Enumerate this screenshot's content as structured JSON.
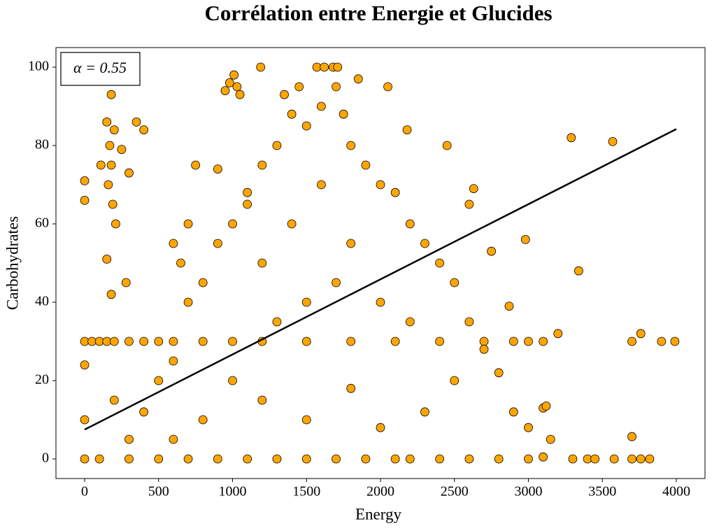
{
  "chart_data": {
    "type": "scatter",
    "title": "Corrélation entre Energie et Glucides",
    "x_label": "Energy",
    "y_label": "Carbohydrates",
    "annotation": "α = 0.55",
    "color": "#ffa500",
    "edge_color": "#000000",
    "xlim": [
      -194,
      4194
    ],
    "ylim": [
      -5,
      105
    ],
    "xticks": [
      0,
      500,
      1000,
      1500,
      2000,
      2500,
      3000,
      3500,
      4000
    ],
    "yticks": [
      0,
      20,
      40,
      60,
      80,
      100
    ],
    "grid": false,
    "x": [
      0,
      0,
      0,
      0,
      0,
      0,
      50,
      100,
      150,
      200,
      300,
      400,
      500,
      600,
      800,
      1000,
      1200,
      1500,
      1800,
      2100,
      2400,
      2700,
      2900,
      3000,
      3100,
      3700,
      3760,
      3900,
      3990,
      100,
      300,
      500,
      700,
      900,
      1100,
      1300,
      1500,
      1700,
      1900,
      2100,
      2200,
      2400,
      2600,
      2800,
      3000,
      3100,
      3300,
      3400,
      3450,
      3580,
      3700,
      3760,
      3820,
      150,
      170,
      180,
      160,
      200,
      190,
      180,
      110,
      250,
      300,
      350,
      400,
      280,
      150,
      180,
      210,
      950,
      980,
      1010,
      1030,
      1050,
      1570,
      1620,
      1680,
      1710,
      1190,
      500,
      600,
      700,
      800,
      900,
      1000,
      1100,
      1200,
      1300,
      1400,
      1450,
      1500,
      1600,
      1700,
      1750,
      1800,
      1900,
      2000,
      2100,
      2200,
      2300,
      2400,
      2500,
      2600,
      2700,
      2800,
      2900,
      3000,
      3100,
      3150,
      1200,
      1400,
      1600,
      1800,
      1500,
      1300,
      1700,
      2000,
      2200,
      1000,
      1200,
      1500,
      1800,
      2000,
      2300,
      2500,
      800,
      600,
      400,
      300,
      200,
      700,
      600,
      750,
      650,
      2050,
      1850,
      2450,
      2180,
      2630,
      2750,
      2980,
      3290,
      3570,
      3340,
      3700,
      2870,
      3200,
      3120,
      1350,
      1100,
      900,
      2600
    ],
    "values": [
      0,
      10,
      30,
      71,
      66,
      24,
      30,
      30,
      30,
      30,
      30,
      30,
      30,
      30,
      30,
      30,
      30,
      30,
      30,
      30,
      30,
      30,
      30,
      30,
      30,
      30,
      32,
      30,
      30,
      0,
      0,
      0,
      0,
      0,
      0,
      0,
      0,
      0,
      0,
      0,
      0,
      0,
      0,
      0,
      0,
      0.5,
      0,
      0,
      0,
      0,
      0,
      0,
      0,
      86,
      80,
      75,
      70,
      84,
      65,
      93,
      75,
      79,
      73,
      86,
      84,
      45,
      51,
      42,
      60,
      94,
      96,
      98,
      95,
      93,
      100,
      100,
      100,
      100,
      100,
      20,
      25,
      40,
      45,
      55,
      60,
      65,
      75,
      80,
      88,
      95,
      85,
      90,
      95,
      88,
      80,
      75,
      70,
      68,
      60,
      55,
      50,
      45,
      35,
      28,
      22,
      12,
      8,
      13,
      5,
      50,
      60,
      70,
      55,
      40,
      35,
      45,
      40,
      35,
      20,
      15,
      10,
      18,
      8,
      12,
      20,
      10,
      5,
      12,
      5,
      15,
      60,
      55,
      75,
      50,
      95,
      97,
      80,
      84,
      69,
      53,
      56,
      82,
      81,
      48,
      5.7,
      39,
      32,
      13.5,
      93,
      68,
      74,
      65
    ],
    "fit": {
      "color": "#000000",
      "x": [
        0,
        4000
      ],
      "values": [
        7.5,
        84.2
      ]
    }
  }
}
